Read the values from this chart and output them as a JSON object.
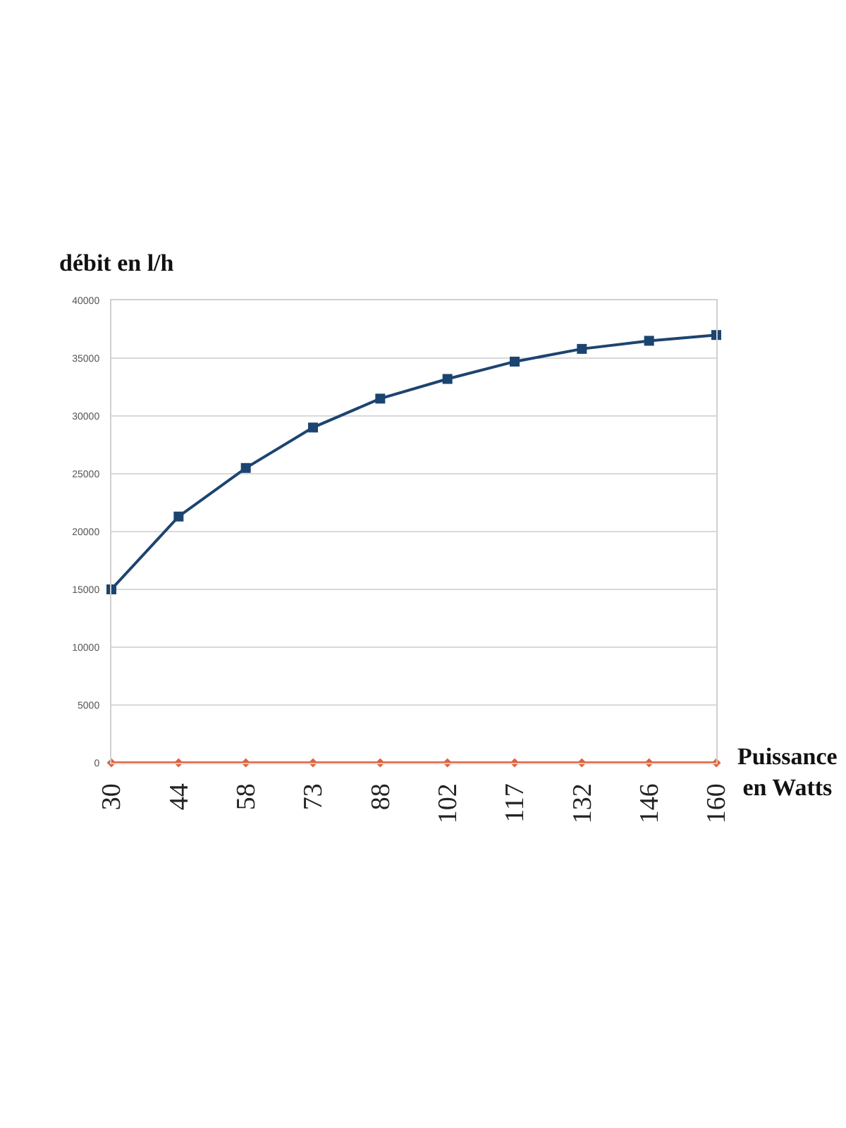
{
  "chart_data": {
    "type": "line",
    "ylabel": "débit en l/h",
    "xlabel": "Puissance en Watts",
    "categories": [
      "30",
      "44",
      "58",
      "73",
      "88",
      "102",
      "117",
      "132",
      "146",
      "160"
    ],
    "series": [
      {
        "color": "#1c4471",
        "marker": "square",
        "values": [
          15000,
          21300,
          25500,
          29000,
          31500,
          33200,
          34700,
          35800,
          36500,
          37000
        ]
      },
      {
        "color": "#e2623a",
        "marker": "diamond",
        "values": [
          0,
          0,
          0,
          0,
          0,
          0,
          0,
          0,
          0,
          0
        ]
      }
    ],
    "ylim": [
      0,
      40000
    ],
    "yticks": [
      0,
      5000,
      10000,
      15000,
      20000,
      25000,
      30000,
      35000,
      40000
    ],
    "grid": "y",
    "line_style": "solid"
  }
}
